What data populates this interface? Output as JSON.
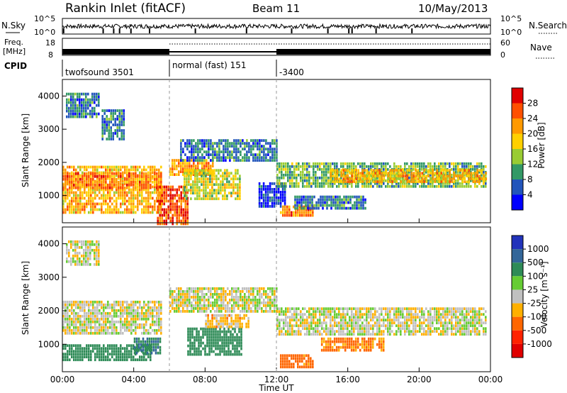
{
  "header": {
    "station": "Rankin Inlet (fitACF)",
    "beam": "Beam 11",
    "date": "10/May/2013"
  },
  "noise_panel": {
    "left_label": "N.Sky",
    "left_ticks": [
      "10^5",
      "10^0"
    ],
    "right_label": "N.Search",
    "right_ticks": [
      "10^5",
      "10^0"
    ]
  },
  "freq_panel": {
    "left_label_line1": "Freq.",
    "left_label_line2": "[MHz]",
    "left_ticks": [
      "18",
      "8"
    ],
    "right_label": "Nave",
    "right_ticks": [
      "60",
      "0"
    ],
    "cpid_label": "CPID",
    "modes": [
      {
        "name": "twofsound 3501",
        "start_hour": 0,
        "end_hour": 6
      },
      {
        "name": "normal (fast) 151",
        "start_hour": 6,
        "end_hour": 12
      },
      {
        "name": "-3400",
        "start_hour": 12,
        "end_hour": 24
      }
    ]
  },
  "power_colorbar": {
    "title": "Power [dB]",
    "ticks": [
      "28",
      "24",
      "20",
      "16",
      "12",
      "8",
      "4"
    ],
    "colors": [
      "#e00000",
      "#ff5000",
      "#ff9900",
      "#ffd000",
      "#99cc33",
      "#339966",
      "#2255bb",
      "#0000ff"
    ]
  },
  "velocity_colorbar": {
    "title": "Velocity [m s⁻¹]",
    "ticks": [
      "1000",
      "500",
      "100",
      "25",
      "-25",
      "-100",
      "-500",
      "-1000"
    ],
    "colors": [
      "#2233bb",
      "#336699",
      "#2e8b57",
      "#66cc33",
      "#c0c0c0",
      "#ffb000",
      "#ff6600",
      "#ff2200",
      "#e00000"
    ]
  },
  "axes": {
    "xlabel": "Time UT",
    "xticks": [
      "00:00",
      "04:00",
      "08:00",
      "12:00",
      "16:00",
      "20:00",
      "00:00"
    ],
    "ylabel": "Slant Range [km]",
    "yticks": [
      "1000",
      "2000",
      "3000",
      "4000"
    ]
  },
  "chart_data": [
    {
      "type": "heatmap",
      "title": "Power [dB]",
      "xlabel": "Time UT",
      "ylabel": "Slant Range [km]",
      "xlim": [
        0,
        24
      ],
      "ylim": [
        180,
        4500
      ],
      "clim": [
        0,
        32
      ],
      "regions": [
        {
          "t0": 0.0,
          "t1": 5.5,
          "r0": 500,
          "r1": 1900,
          "value": 22
        },
        {
          "t0": 0.0,
          "t1": 5.5,
          "r0": 1200,
          "r1": 1700,
          "value": 26
        },
        {
          "t0": 0.2,
          "t1": 2.0,
          "r0": 3400,
          "r1": 4100,
          "value": 10
        },
        {
          "t0": 2.2,
          "t1": 3.5,
          "r0": 2700,
          "r1": 3600,
          "value": 10
        },
        {
          "t0": 5.3,
          "t1": 7.0,
          "r0": 180,
          "r1": 1300,
          "value": 28
        },
        {
          "t0": 6.0,
          "t1": 8.5,
          "r0": 1600,
          "r1": 2100,
          "value": 24
        },
        {
          "t0": 6.6,
          "t1": 12.0,
          "r0": 2100,
          "r1": 2700,
          "value": 10
        },
        {
          "t0": 6.8,
          "t1": 10.0,
          "r0": 900,
          "r1": 1800,
          "value": 18
        },
        {
          "t0": 11.0,
          "t1": 12.5,
          "r0": 700,
          "r1": 1400,
          "value": 6
        },
        {
          "t0": 12.2,
          "t1": 14.0,
          "r0": 400,
          "r1": 700,
          "value": 26
        },
        {
          "t0": 12.0,
          "t1": 23.8,
          "r0": 1300,
          "r1": 2000,
          "value": 14
        },
        {
          "t0": 15.0,
          "t1": 23.8,
          "r0": 1400,
          "r1": 1800,
          "value": 22
        },
        {
          "t0": 13.0,
          "t1": 17.0,
          "r0": 600,
          "r1": 1000,
          "value": 10
        }
      ]
    },
    {
      "type": "heatmap",
      "title": "Velocity [m s⁻¹]",
      "xlabel": "Time UT",
      "ylabel": "Slant Range [km]",
      "xlim": [
        0,
        24
      ],
      "ylim": [
        180,
        4500
      ],
      "clim": [
        -1000,
        1000
      ],
      "regions": [
        {
          "t0": 0.0,
          "t1": 5.5,
          "r0": 1300,
          "r1": 2300,
          "value": 0
        },
        {
          "t0": 0.0,
          "t1": 5.0,
          "r0": 500,
          "r1": 1000,
          "value": 150
        },
        {
          "t0": 0.2,
          "t1": 2.0,
          "r0": 3400,
          "r1": 4100,
          "value": 0
        },
        {
          "t0": 4.0,
          "t1": 5.5,
          "r0": 700,
          "r1": 1200,
          "value": 300
        },
        {
          "t0": 6.0,
          "t1": 12.0,
          "r0": 2000,
          "r1": 2700,
          "value": 0
        },
        {
          "t0": 7.0,
          "t1": 10.0,
          "r0": 700,
          "r1": 1500,
          "value": 200
        },
        {
          "t0": 8.0,
          "t1": 10.5,
          "r0": 1500,
          "r1": 1900,
          "value": -50
        },
        {
          "t0": 12.2,
          "t1": 14.0,
          "r0": 350,
          "r1": 700,
          "value": -150
        },
        {
          "t0": 12.0,
          "t1": 23.8,
          "r0": 1300,
          "r1": 2100,
          "value": 0
        },
        {
          "t0": 14.5,
          "t1": 18.0,
          "r0": 800,
          "r1": 1200,
          "value": -120
        }
      ]
    }
  ]
}
